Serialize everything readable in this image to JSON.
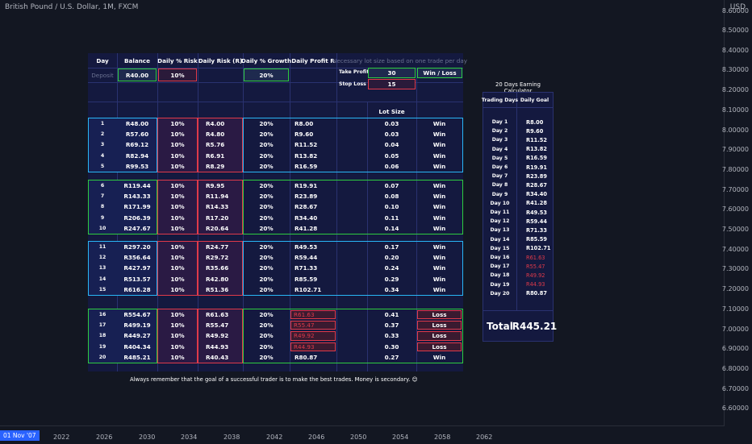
{
  "chart_header": {
    "symbol": "British Pound / U.S. Dollar, 1M, FXCM",
    "currency": "USD"
  },
  "price_axis": [
    "8.50000",
    "8.40000",
    "8.30000",
    "8.20000",
    "8.10000",
    "8.00000",
    "7.90000",
    "7.80000",
    "7.70000",
    "7.60000",
    "7.50000",
    "7.40000",
    "7.30000",
    "7.20000",
    "7.10000",
    "7.00000",
    "6.90000",
    "6.80000",
    "6.70000",
    "6.60000"
  ],
  "price_axis_top": "8.60000",
  "time_axis": {
    "current": "01 Nov '07",
    "ticks": [
      "2022",
      "2026",
      "2030",
      "2034",
      "2038",
      "2042",
      "2046",
      "2050",
      "2054",
      "2058",
      "2062"
    ]
  },
  "table": {
    "headers": {
      "day": "Day",
      "balance": "Balance",
      "risk_pct": "Daily % Risk",
      "risk_r": "Daily Risk (R)",
      "growth": "Daily % Growth",
      "profit": "Daily Profit R"
    },
    "lot_note": "Necessary lot size based on one trade per day",
    "deposit_label": "Deposit",
    "deposit_value": "R40.00",
    "risk_input": "10%",
    "growth_input": "20%",
    "take_profit_label": "Take Profit",
    "take_profit_value": "30",
    "win_loss_label": "Win / Loss",
    "stop_loss_label": "Stop Loss",
    "stop_loss_value": "15",
    "lot_size_label": "Lot Size",
    "rows": [
      {
        "day": "1",
        "balance": "R48.00",
        "risk": "10%",
        "risk_r": "R4.00",
        "growth": "20%",
        "profit": "R8.00",
        "lot": "0.03",
        "result": "Win"
      },
      {
        "day": "2",
        "balance": "R57.60",
        "risk": "10%",
        "risk_r": "R4.80",
        "growth": "20%",
        "profit": "R9.60",
        "lot": "0.03",
        "result": "Win"
      },
      {
        "day": "3",
        "balance": "R69.12",
        "risk": "10%",
        "risk_r": "R5.76",
        "growth": "20%",
        "profit": "R11.52",
        "lot": "0.04",
        "result": "Win"
      },
      {
        "day": "4",
        "balance": "R82.94",
        "risk": "10%",
        "risk_r": "R6.91",
        "growth": "20%",
        "profit": "R13.82",
        "lot": "0.05",
        "result": "Win"
      },
      {
        "day": "5",
        "balance": "R99.53",
        "risk": "10%",
        "risk_r": "R8.29",
        "growth": "20%",
        "profit": "R16.59",
        "lot": "0.06",
        "result": "Win"
      },
      {
        "day": "6",
        "balance": "R119.44",
        "risk": "10%",
        "risk_r": "R9.95",
        "growth": "20%",
        "profit": "R19.91",
        "lot": "0.07",
        "result": "Win"
      },
      {
        "day": "7",
        "balance": "R143.33",
        "risk": "10%",
        "risk_r": "R11.94",
        "growth": "20%",
        "profit": "R23.89",
        "lot": "0.08",
        "result": "Win"
      },
      {
        "day": "8",
        "balance": "R171.99",
        "risk": "10%",
        "risk_r": "R14.33",
        "growth": "20%",
        "profit": "R28.67",
        "lot": "0.10",
        "result": "Win"
      },
      {
        "day": "9",
        "balance": "R206.39",
        "risk": "10%",
        "risk_r": "R17.20",
        "growth": "20%",
        "profit": "R34.40",
        "lot": "0.11",
        "result": "Win"
      },
      {
        "day": "10",
        "balance": "R247.67",
        "risk": "10%",
        "risk_r": "R20.64",
        "growth": "20%",
        "profit": "R41.28",
        "lot": "0.14",
        "result": "Win"
      },
      {
        "day": "11",
        "balance": "R297.20",
        "risk": "10%",
        "risk_r": "R24.77",
        "growth": "20%",
        "profit": "R49.53",
        "lot": "0.17",
        "result": "Win"
      },
      {
        "day": "12",
        "balance": "R356.64",
        "risk": "10%",
        "risk_r": "R29.72",
        "growth": "20%",
        "profit": "R59.44",
        "lot": "0.20",
        "result": "Win"
      },
      {
        "day": "13",
        "balance": "R427.97",
        "risk": "10%",
        "risk_r": "R35.66",
        "growth": "20%",
        "profit": "R71.33",
        "lot": "0.24",
        "result": "Win"
      },
      {
        "day": "14",
        "balance": "R513.57",
        "risk": "10%",
        "risk_r": "R42.80",
        "growth": "20%",
        "profit": "R85.59",
        "lot": "0.29",
        "result": "Win"
      },
      {
        "day": "15",
        "balance": "R616.28",
        "risk": "10%",
        "risk_r": "R51.36",
        "growth": "20%",
        "profit": "R102.71",
        "lot": "0.34",
        "result": "Win"
      },
      {
        "day": "16",
        "balance": "R554.67",
        "risk": "10%",
        "risk_r": "R61.63",
        "growth": "20%",
        "profit": "R61.63",
        "lot": "0.41",
        "result": "Loss"
      },
      {
        "day": "17",
        "balance": "R499.19",
        "risk": "10%",
        "risk_r": "R55.47",
        "growth": "20%",
        "profit": "R55.47",
        "lot": "0.37",
        "result": "Loss"
      },
      {
        "day": "18",
        "balance": "R449.27",
        "risk": "10%",
        "risk_r": "R49.92",
        "growth": "20%",
        "profit": "R49.92",
        "lot": "0.33",
        "result": "Loss"
      },
      {
        "day": "19",
        "balance": "R404.34",
        "risk": "10%",
        "risk_r": "R44.93",
        "growth": "20%",
        "profit": "R44.93",
        "lot": "0.30",
        "result": "Loss"
      },
      {
        "day": "20",
        "balance": "R485.21",
        "risk": "10%",
        "risk_r": "R40.43",
        "growth": "20%",
        "profit": "R80.87",
        "lot": "0.27",
        "result": "Win"
      }
    ]
  },
  "calculator": {
    "title": "20 Days Earning Calculator",
    "headers": {
      "days": "Trading Days",
      "goal": "Daily Goal"
    },
    "rows": [
      {
        "day": "Day 1",
        "goal": "R8.00",
        "loss": false
      },
      {
        "day": "Day 2",
        "goal": "R9.60",
        "loss": false
      },
      {
        "day": "Day 3",
        "goal": "R11.52",
        "loss": false
      },
      {
        "day": "Day 4",
        "goal": "R13.82",
        "loss": false
      },
      {
        "day": "Day 5",
        "goal": "R16.59",
        "loss": false
      },
      {
        "day": "Day 6",
        "goal": "R19.91",
        "loss": false
      },
      {
        "day": "Day 7",
        "goal": "R23.89",
        "loss": false
      },
      {
        "day": "Day 8",
        "goal": "R28.67",
        "loss": false
      },
      {
        "day": "Day 9",
        "goal": "R34.40",
        "loss": false
      },
      {
        "day": "Day 10",
        "goal": "R41.28",
        "loss": false
      },
      {
        "day": "Day 11",
        "goal": "R49.53",
        "loss": false
      },
      {
        "day": "Day 12",
        "goal": "R59.44",
        "loss": false
      },
      {
        "day": "Day 13",
        "goal": "R71.33",
        "loss": false
      },
      {
        "day": "Day 14",
        "goal": "R85.59",
        "loss": false
      },
      {
        "day": "Day 15",
        "goal": "R102.71",
        "loss": false
      },
      {
        "day": "Day 16",
        "goal": "R61.63",
        "loss": true
      },
      {
        "day": "Day 17",
        "goal": "R55.47",
        "loss": true
      },
      {
        "day": "Day 18",
        "goal": "R49.92",
        "loss": true
      },
      {
        "day": "Day 19",
        "goal": "R44.93",
        "loss": true
      },
      {
        "day": "Day 20",
        "goal": "R80.87",
        "loss": false
      }
    ],
    "total_label": "Total",
    "total_value": "R445.21"
  },
  "footer_note": "Always remember that the goal of a successful trader is to make the best trades. Money is secondary. 😊",
  "colors": {
    "background": "#131722",
    "panel": "#14193f",
    "win_group_blue": "#29b6f6",
    "win_group_green": "#2ecc40",
    "loss_red": "#e03a4a",
    "deposit_green": "#2ecc40"
  }
}
